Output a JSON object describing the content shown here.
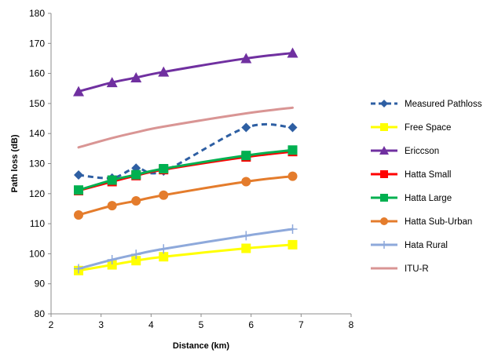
{
  "chart_data": {
    "type": "line",
    "xlabel": "Distance (km)",
    "ylabel": "Path loss (dB)",
    "xlim": [
      2,
      8
    ],
    "ylim": [
      80,
      180
    ],
    "xticks": [
      2,
      3,
      4,
      5,
      6,
      7,
      8
    ],
    "yticks": [
      80,
      90,
      100,
      110,
      120,
      130,
      140,
      150,
      160,
      170,
      180
    ],
    "grid": false,
    "legend_position": "right",
    "series": [
      {
        "name": "Measured Pathloss",
        "color": "#2e5fa3",
        "marker": "diamond",
        "dashed": true,
        "x": [
          2.55,
          3.22,
          3.7,
          4.25,
          5.9,
          6.83
        ],
        "y": [
          126.2,
          125.2,
          128.5,
          127.5,
          142.0,
          142.0
        ]
      },
      {
        "name": "Free Space",
        "color": "#ffff00",
        "marker": "square",
        "dashed": false,
        "x": [
          2.55,
          3.22,
          3.7,
          4.25,
          5.9,
          6.83
        ],
        "y": [
          94.4,
          96.3,
          97.7,
          99.0,
          101.8,
          103.0
        ]
      },
      {
        "name": "Ericcson",
        "color": "#7030a0",
        "marker": "triangle",
        "dashed": false,
        "x": [
          2.55,
          3.22,
          3.7,
          4.25,
          5.9,
          6.83
        ],
        "y": [
          154.0,
          157.0,
          158.6,
          160.5,
          165.0,
          166.8
        ]
      },
      {
        "name": "Hatta Small",
        "color": "#ff0000",
        "marker": "square",
        "dashed": false,
        "x": [
          2.55,
          3.22,
          3.7,
          4.25,
          5.9,
          6.83
        ],
        "y": [
          121.0,
          124.0,
          126.0,
          128.0,
          132.2,
          134.0
        ]
      },
      {
        "name": "Hatta Large",
        "color": "#00b050",
        "marker": "square",
        "dashed": false,
        "x": [
          2.55,
          3.22,
          3.7,
          4.25,
          5.9,
          6.83
        ],
        "y": [
          121.2,
          124.5,
          126.3,
          128.3,
          132.7,
          134.5
        ]
      },
      {
        "name": "Hatta Sub-Urban",
        "color": "#e47c2c",
        "marker": "circle",
        "dashed": false,
        "x": [
          2.55,
          3.22,
          3.7,
          4.25,
          5.9,
          6.83
        ],
        "y": [
          112.9,
          116.0,
          117.6,
          119.5,
          124.0,
          125.8
        ]
      },
      {
        "name": "Hata Rural",
        "color": "#8ea9db",
        "marker": "plus",
        "dashed": false,
        "x": [
          2.55,
          3.22,
          3.7,
          4.25,
          5.9,
          6.83
        ],
        "y": [
          95.0,
          98.0,
          99.8,
          101.6,
          106.0,
          108.2
        ]
      },
      {
        "name": "ITU-R",
        "color": "#d99594",
        "marker": "none",
        "dashed": false,
        "x": [
          2.55,
          3.22,
          3.7,
          4.25,
          5.9,
          6.83
        ],
        "y": [
          135.4,
          138.5,
          140.4,
          142.3,
          146.7,
          148.6
        ]
      }
    ]
  }
}
